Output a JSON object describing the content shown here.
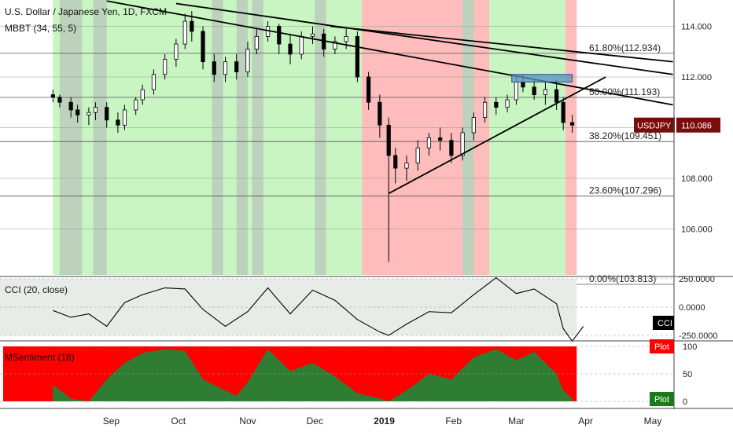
{
  "header": {
    "title": "U.S. Dollar / Japanese Yen, 1D, FXCM",
    "indicator": "MBBT (34, 55, 5)"
  },
  "price_axis": {
    "ticks": [
      {
        "value": 106,
        "label": "106.000"
      },
      {
        "value": 108,
        "label": "108.000"
      },
      {
        "value": 110,
        "label": "110.000"
      },
      {
        "value": 112,
        "label": "112.000"
      },
      {
        "value": 114,
        "label": "114.000"
      }
    ],
    "last_label": "USDJPY",
    "last_value": "110.086",
    "last_color": "#7a0c0c"
  },
  "fib_levels": [
    {
      "value": 112.934,
      "label": "61.80%(112.934)"
    },
    {
      "value": 111.193,
      "label": "50.00%(111.193)"
    },
    {
      "value": 109.451,
      "label": "38.20%(109.451)"
    },
    {
      "value": 107.296,
      "label": "23.60%(107.296)"
    },
    {
      "value": 103.813,
      "label": "0.00%(103.813)"
    }
  ],
  "time_axis": {
    "labels": [
      {
        "label": "Sep",
        "bold": false
      },
      {
        "label": "Oct",
        "bold": false
      },
      {
        "label": "Nov",
        "bold": false
      },
      {
        "label": "Dec",
        "bold": false
      },
      {
        "label": "2019",
        "bold": true
      },
      {
        "label": "Feb",
        "bold": false
      },
      {
        "label": "Mar",
        "bold": false
      },
      {
        "label": "Apr",
        "bold": false
      },
      {
        "label": "May",
        "bold": false
      }
    ]
  },
  "cci_panel": {
    "title": "CCI (20, close)",
    "ticks": [
      {
        "value": 250,
        "label": "250.0000"
      },
      {
        "value": 0,
        "label": "0.0000"
      },
      {
        "value": -250,
        "label": "-250.0000"
      }
    ],
    "badge": "CCI"
  },
  "sentiment_panel": {
    "title": "MSentiment (18)",
    "ticks": [
      {
        "value": 100,
        "label": "100"
      },
      {
        "value": 50,
        "label": "50"
      },
      {
        "value": 0,
        "label": "0"
      }
    ],
    "badge_top": "Plot",
    "badge_bottom": "Plot",
    "colors": {
      "bull": "#2e7d32",
      "bear": "#ff0000"
    }
  },
  "colors": {
    "green_zone": "#c8f5c2",
    "red_zone": "#ffbcbc",
    "gray_zone": "#bcd2bc",
    "candle": "#000000",
    "channel_box": "#5b8fc9"
  },
  "chart_data": {
    "type": "candlestick",
    "title": "U.S. Dollar / Japanese Yen, 1D, FXCM",
    "ylim": [
      103.813,
      115.2
    ],
    "x_range": [
      "2018-08-06",
      "2019-05-10"
    ],
    "ohlc": [
      [
        "2018-08-06",
        111.3,
        111.5,
        111.0,
        111.2
      ],
      [
        "2018-08-09",
        111.2,
        111.3,
        110.8,
        111.0
      ],
      [
        "2018-08-14",
        111.0,
        111.2,
        110.4,
        110.7
      ],
      [
        "2018-08-17",
        110.7,
        110.9,
        110.2,
        110.5
      ],
      [
        "2018-08-22",
        110.5,
        110.8,
        110.1,
        110.6
      ],
      [
        "2018-08-25",
        110.6,
        111.0,
        110.3,
        110.8
      ],
      [
        "2018-08-30",
        110.8,
        111.0,
        110.0,
        110.3
      ],
      [
        "2018-09-04",
        110.3,
        110.6,
        109.8,
        110.1
      ],
      [
        "2018-09-07",
        110.1,
        110.9,
        109.9,
        110.7
      ],
      [
        "2018-09-12",
        110.7,
        111.2,
        110.5,
        111.1
      ],
      [
        "2018-09-15",
        111.1,
        111.7,
        110.9,
        111.5
      ],
      [
        "2018-09-20",
        111.5,
        112.3,
        111.3,
        112.1
      ],
      [
        "2018-09-25",
        112.1,
        112.9,
        111.9,
        112.7
      ],
      [
        "2018-09-30",
        112.7,
        113.5,
        112.4,
        113.3
      ],
      [
        "2018-10-04",
        113.3,
        114.5,
        113.1,
        114.2
      ],
      [
        "2018-10-07",
        114.2,
        114.6,
        113.4,
        113.8
      ],
      [
        "2018-10-12",
        113.8,
        114.0,
        112.3,
        112.6
      ],
      [
        "2018-10-17",
        112.6,
        112.9,
        111.8,
        112.1
      ],
      [
        "2018-10-22",
        112.1,
        112.8,
        111.8,
        112.6
      ],
      [
        "2018-10-27",
        112.6,
        112.9,
        111.9,
        112.2
      ],
      [
        "2018-11-01",
        112.2,
        113.4,
        112.0,
        113.1
      ],
      [
        "2018-11-05",
        113.1,
        113.9,
        112.9,
        113.6
      ],
      [
        "2018-11-10",
        113.6,
        114.2,
        113.4,
        114.0
      ],
      [
        "2018-11-15",
        114.0,
        114.1,
        112.9,
        113.3
      ],
      [
        "2018-11-20",
        113.3,
        113.7,
        112.5,
        112.9
      ],
      [
        "2018-11-25",
        112.9,
        113.8,
        112.7,
        113.6
      ],
      [
        "2018-11-30",
        113.6,
        114.0,
        113.3,
        113.7
      ],
      [
        "2018-12-05",
        113.7,
        113.9,
        112.8,
        113.1
      ],
      [
        "2018-12-10",
        113.1,
        113.6,
        112.9,
        113.4
      ],
      [
        "2018-12-15",
        113.4,
        113.9,
        113.1,
        113.6
      ],
      [
        "2018-12-20",
        113.6,
        113.8,
        111.8,
        112.0
      ],
      [
        "2018-12-25",
        112.0,
        112.2,
        110.7,
        111.0
      ],
      [
        "2018-12-30",
        111.0,
        111.3,
        109.6,
        110.1
      ],
      [
        "2019-01-03",
        110.1,
        110.4,
        104.7,
        108.9
      ],
      [
        "2019-01-06",
        108.9,
        109.2,
        107.8,
        108.4
      ],
      [
        "2019-01-11",
        108.4,
        108.9,
        107.9,
        108.6
      ],
      [
        "2019-01-16",
        108.6,
        109.5,
        108.3,
        109.2
      ],
      [
        "2019-01-21",
        109.2,
        109.8,
        108.9,
        109.6
      ],
      [
        "2019-01-26",
        109.6,
        110.0,
        109.1,
        109.5
      ],
      [
        "2019-01-31",
        109.5,
        109.8,
        108.6,
        108.9
      ],
      [
        "2019-02-05",
        108.9,
        110.0,
        108.7,
        109.8
      ],
      [
        "2019-02-10",
        109.8,
        110.6,
        109.5,
        110.4
      ],
      [
        "2019-02-15",
        110.4,
        111.2,
        110.2,
        111.0
      ],
      [
        "2019-02-20",
        111.0,
        111.2,
        110.5,
        110.8
      ],
      [
        "2019-02-25",
        110.8,
        111.3,
        110.6,
        111.1
      ],
      [
        "2019-03-01",
        111.1,
        112.0,
        110.9,
        111.8
      ],
      [
        "2019-03-04",
        111.8,
        112.1,
        111.4,
        111.6
      ],
      [
        "2019-03-09",
        111.6,
        111.9,
        111.1,
        111.3
      ],
      [
        "2019-03-14",
        111.3,
        111.8,
        110.9,
        111.5
      ],
      [
        "2019-03-19",
        111.5,
        111.9,
        110.7,
        111.0
      ],
      [
        "2019-03-22",
        111.0,
        111.2,
        109.9,
        110.2
      ],
      [
        "2019-03-26",
        110.2,
        110.5,
        109.8,
        110.1
      ]
    ],
    "cci": [
      [
        "2018-08-06",
        -30
      ],
      [
        "2018-08-14",
        -90
      ],
      [
        "2018-08-22",
        -60
      ],
      [
        "2018-08-30",
        -170
      ],
      [
        "2018-09-07",
        40
      ],
      [
        "2018-09-15",
        110
      ],
      [
        "2018-09-25",
        170
      ],
      [
        "2018-10-04",
        160
      ],
      [
        "2018-10-12",
        -20
      ],
      [
        "2018-10-22",
        -170
      ],
      [
        "2018-11-01",
        -40
      ],
      [
        "2018-11-10",
        170
      ],
      [
        "2018-11-20",
        -60
      ],
      [
        "2018-11-30",
        150
      ],
      [
        "2018-12-10",
        60
      ],
      [
        "2018-12-20",
        -110
      ],
      [
        "2018-12-30",
        -220
      ],
      [
        "2019-01-03",
        -250
      ],
      [
        "2019-01-11",
        -150
      ],
      [
        "2019-01-21",
        -40
      ],
      [
        "2019-01-31",
        -50
      ],
      [
        "2019-02-10",
        110
      ],
      [
        "2019-02-20",
        260
      ],
      [
        "2019-03-01",
        120
      ],
      [
        "2019-03-09",
        160
      ],
      [
        "2019-03-19",
        30
      ],
      [
        "2019-03-22",
        -190
      ],
      [
        "2019-03-26",
        -300
      ],
      [
        "2019-03-31",
        -170
      ]
    ],
    "sentiment": [
      [
        "2018-08-06",
        30
      ],
      [
        "2018-08-14",
        5
      ],
      [
        "2018-08-22",
        0
      ],
      [
        "2018-08-30",
        40
      ],
      [
        "2018-09-07",
        70
      ],
      [
        "2018-09-15",
        88
      ],
      [
        "2018-09-25",
        95
      ],
      [
        "2018-10-04",
        92
      ],
      [
        "2018-10-12",
        40
      ],
      [
        "2018-10-22",
        20
      ],
      [
        "2018-10-27",
        10
      ],
      [
        "2018-11-01",
        35
      ],
      [
        "2018-11-10",
        95
      ],
      [
        "2018-11-20",
        55
      ],
      [
        "2018-11-30",
        70
      ],
      [
        "2018-12-10",
        45
      ],
      [
        "2018-12-20",
        15
      ],
      [
        "2018-12-30",
        5
      ],
      [
        "2019-01-03",
        0
      ],
      [
        "2019-01-11",
        20
      ],
      [
        "2019-01-21",
        50
      ],
      [
        "2019-01-31",
        40
      ],
      [
        "2019-02-10",
        80
      ],
      [
        "2019-02-20",
        95
      ],
      [
        "2019-03-01",
        75
      ],
      [
        "2019-03-09",
        90
      ],
      [
        "2019-03-19",
        50
      ],
      [
        "2019-03-22",
        20
      ],
      [
        "2019-03-26",
        5
      ]
    ],
    "zones": [
      [
        "2018-08-06",
        "2018-12-22",
        "green"
      ],
      [
        "2018-12-22",
        "2019-02-17",
        "red"
      ],
      [
        "2019-02-17",
        "2019-03-23",
        "green"
      ],
      [
        "2019-03-23",
        "2019-03-28",
        "red"
      ]
    ],
    "gray_bands": [
      [
        "2018-08-09",
        "2018-08-19"
      ],
      [
        "2018-08-24",
        "2018-08-30"
      ],
      [
        "2018-10-16",
        "2018-10-21"
      ],
      [
        "2018-10-27",
        "2018-11-01"
      ],
      [
        "2018-11-03",
        "2018-11-08"
      ],
      [
        "2018-12-01",
        "2018-12-06"
      ],
      [
        "2019-02-05",
        "2019-02-10"
      ]
    ],
    "trendlines": [
      [
        [
          "2018-08-30",
          115.0
        ],
        [
          "2019-05-10",
          110.9
        ]
      ],
      [
        [
          "2018-09-30",
          114.9
        ],
        [
          "2019-05-10",
          112.1
        ]
      ],
      [
        [
          "2018-12-08",
          114.0
        ],
        [
          "2019-05-10",
          112.6
        ]
      ],
      [
        [
          "2019-01-03",
          107.4
        ],
        [
          "2019-04-10",
          112.0
        ]
      ]
    ],
    "channel_box": [
      [
        "2019-02-27",
        112.1
      ],
      [
        "2019-03-26",
        111.8
      ]
    ],
    "last_price": 110.086
  }
}
